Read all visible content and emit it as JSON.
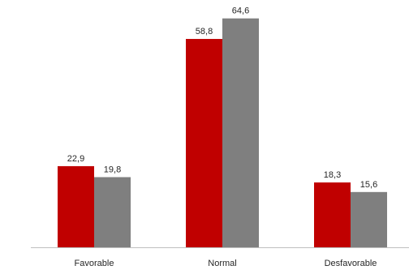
{
  "chart_data": {
    "type": "bar",
    "categories": [
      "Favorable",
      "Normal",
      "Desfavorable"
    ],
    "series": [
      {
        "values": [
          22.9,
          58.8,
          18.3
        ],
        "labels": [
          "22,9",
          "58,8",
          "18,3"
        ],
        "color": "#C00000"
      },
      {
        "values": [
          19.8,
          64.6,
          15.6
        ],
        "labels": [
          "19,8",
          "64,6",
          "15,6"
        ],
        "color": "#7F7F7F"
      }
    ],
    "ylim": [
      0,
      70
    ],
    "grid": false,
    "legend": "none",
    "axis_color": "#BFBFBF"
  }
}
